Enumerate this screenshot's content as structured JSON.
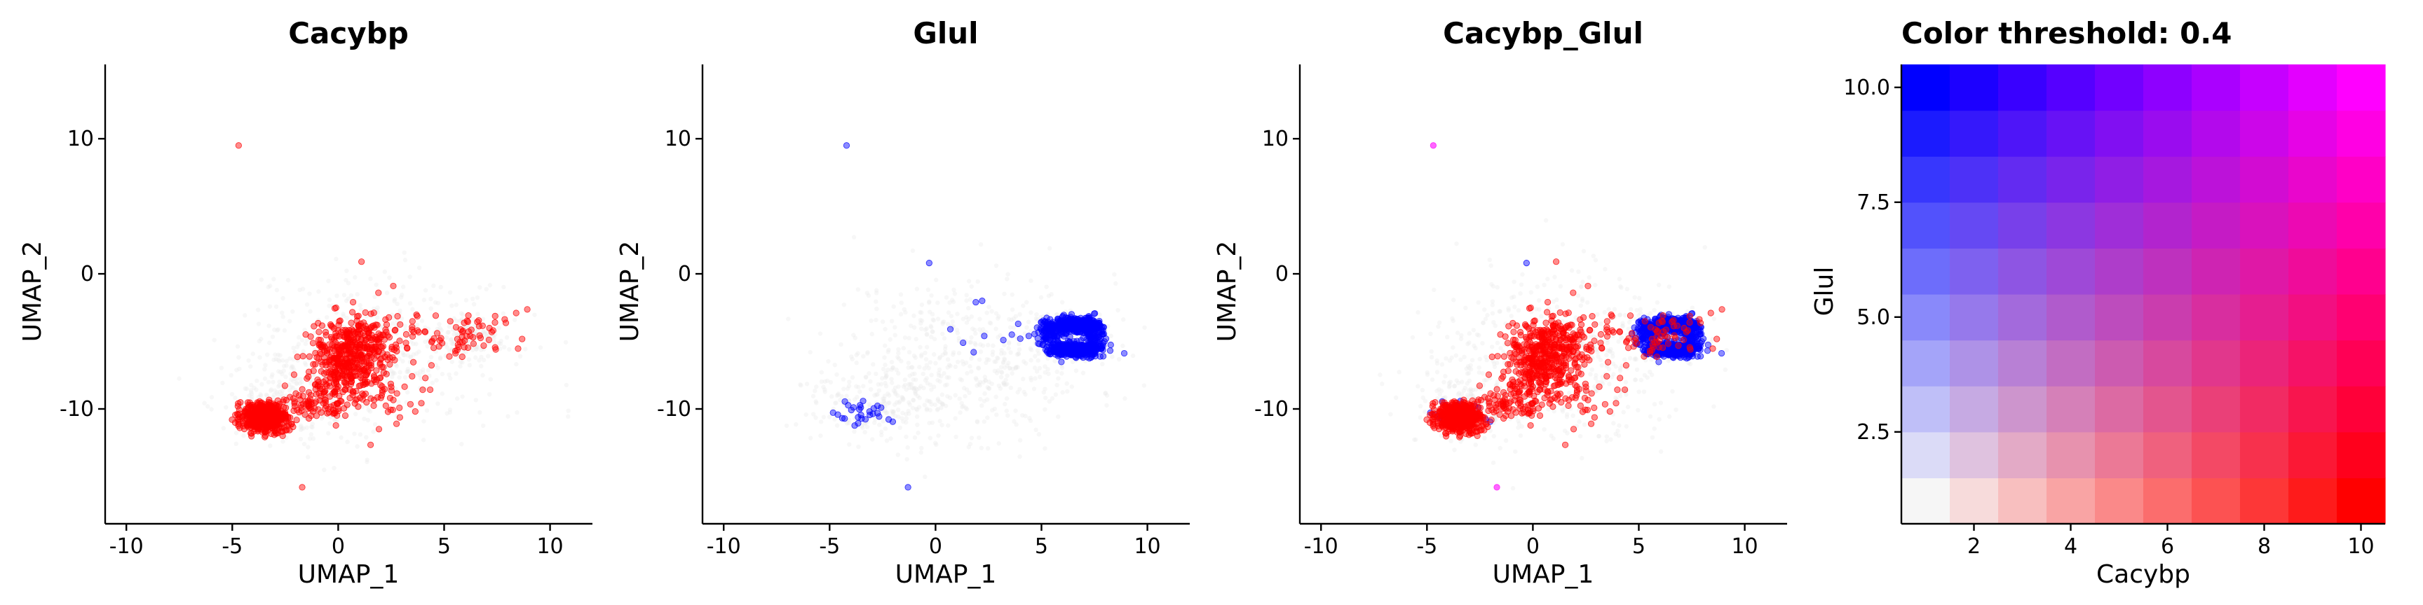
{
  "chart_data": [
    {
      "type": "scatter",
      "title": "Cacybp",
      "xlabel": "UMAP_1",
      "ylabel": "UMAP_2",
      "xlim": [
        -11,
        12
      ],
      "ylim": [
        -18.5,
        15.5
      ],
      "xticks": [
        -10,
        -5,
        0,
        5,
        10
      ],
      "yticks": [
        -10,
        0,
        10
      ],
      "background_color": "#e8e8e8",
      "highlight_color": "#ff0000",
      "clusters": [
        {
          "cx": -3.5,
          "cy": -10.6,
          "sx": 0.55,
          "sy": 0.55,
          "n": 520
        },
        {
          "cx": 0.2,
          "cy": -6.5,
          "sx": 0.75,
          "sy": 1.4,
          "n": 300
        },
        {
          "cx": 1.4,
          "cy": -5.0,
          "sx": 0.8,
          "sy": 1.1,
          "n": 160
        },
        {
          "cx": -1.0,
          "cy": -9.3,
          "sx": 0.7,
          "sy": 0.8,
          "n": 90
        },
        {
          "cx": 2.0,
          "cy": -9.0,
          "sx": 0.9,
          "sy": 1.3,
          "n": 60
        },
        {
          "cx": 4.0,
          "cy": -4.5,
          "sx": 1.8,
          "sy": 1.0,
          "n": 45
        },
        {
          "cx": 6.2,
          "cy": -4.5,
          "sx": 0.9,
          "sy": 0.7,
          "n": 40
        }
      ],
      "points": [
        [
          -4.7,
          9.5
        ],
        [
          -1.7,
          -15.8
        ],
        [
          1.1,
          0.9
        ],
        [
          8.4,
          -2.9
        ],
        [
          7.4,
          -3.6
        ],
        [
          2.6,
          -0.9
        ],
        [
          1.9,
          -1.4
        ]
      ]
    },
    {
      "type": "scatter",
      "title": "Glul",
      "xlabel": "UMAP_1",
      "ylabel": "UMAP_2",
      "xlim": [
        -11,
        12
      ],
      "ylim": [
        -18.5,
        15.5
      ],
      "xticks": [
        -10,
        -5,
        0,
        5,
        10
      ],
      "yticks": [
        -10,
        0,
        10
      ],
      "background_color": "#e8e8e8",
      "highlight_color": "#0000ff",
      "clusters": [
        {
          "cx": 6.6,
          "cy": -3.8,
          "sx": 0.55,
          "sy": 0.28,
          "n": 350
        },
        {
          "cx": 6.5,
          "cy": -5.6,
          "sx": 0.6,
          "sy": 0.25,
          "n": 350
        },
        {
          "cx": 5.4,
          "cy": -4.5,
          "sx": 0.3,
          "sy": 0.55,
          "n": 90
        },
        {
          "cx": 7.5,
          "cy": -4.6,
          "sx": 0.25,
          "sy": 0.6,
          "n": 90
        },
        {
          "cx": -3.5,
          "cy": -10.2,
          "sx": 0.7,
          "sy": 0.45,
          "n": 28
        }
      ],
      "points": [
        [
          -4.2,
          9.5
        ],
        [
          -0.3,
          0.8
        ],
        [
          -1.3,
          -15.8
        ],
        [
          2.2,
          -2.0
        ],
        [
          1.9,
          -2.1
        ],
        [
          4.0,
          -4.8
        ],
        [
          3.2,
          -4.9
        ],
        [
          3.6,
          -4.5
        ],
        [
          0.7,
          -4.1
        ],
        [
          1.3,
          -5.1
        ],
        [
          2.3,
          -4.6
        ],
        [
          1.8,
          -5.8
        ],
        [
          4.4,
          -4.6
        ],
        [
          3.9,
          -3.7
        ]
      ]
    },
    {
      "type": "scatter",
      "title": "Cacybp_Glul",
      "xlabel": "UMAP_1",
      "ylabel": "UMAP_2",
      "xlim": [
        -11,
        12
      ],
      "ylim": [
        -18.5,
        15.5
      ],
      "xticks": [
        -10,
        -5,
        0,
        5,
        10
      ],
      "yticks": [
        -10,
        0,
        10
      ],
      "background_color": "#e8e8e8",
      "overlay_of": [
        "Cacybp",
        "Glul"
      ],
      "overlap_color": "#ff00ff",
      "points": [
        [
          -4.7,
          9.5
        ],
        [
          -1.7,
          -15.8
        ]
      ]
    },
    {
      "type": "heatmap",
      "title": "Color threshold: 0.4",
      "xlabel": "Cacybp",
      "ylabel": "Glul",
      "xlim": [
        0.5,
        10.5
      ],
      "ylim": [
        0.5,
        10.5
      ],
      "xticks": [
        2,
        4,
        6,
        8,
        10
      ],
      "yticks": [
        2.5,
        5.0,
        7.5,
        10.0
      ],
      "ytick_labels": [
        "2.5",
        "5.0",
        "7.5",
        "10.0"
      ],
      "grid_size": 10,
      "corner_colors": {
        "low_low": "#f6f6f6",
        "high_x": "#ff0000",
        "high_y": "#0000ff",
        "high_both": "#ff00ff"
      }
    }
  ]
}
